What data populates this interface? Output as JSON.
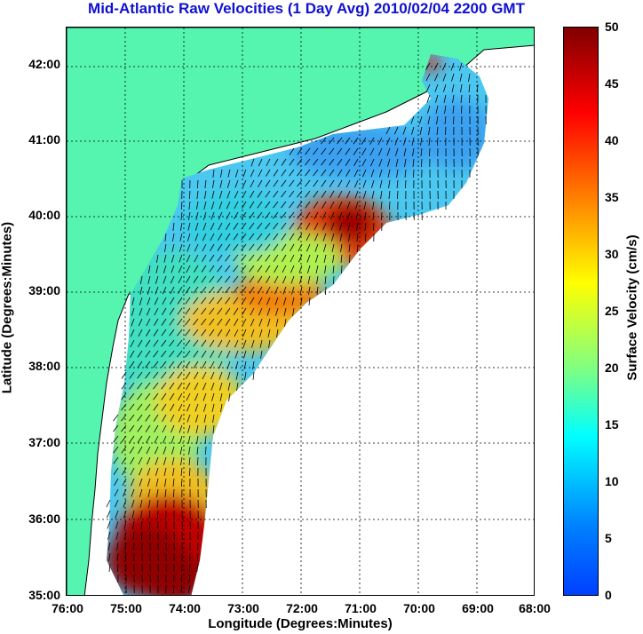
{
  "title": "Mid-Atlantic Raw Velocities (1 Day Avg) 2010/02/04 2200 GMT",
  "map": {
    "xlabel": "Longitude (Degrees:Minutes)",
    "ylabel": "Latitude (Degrees:Minutes)",
    "x_ticks": [
      "76:00",
      "75:00",
      "74:00",
      "73:00",
      "72:00",
      "71:00",
      "70:00",
      "69:00",
      "68:00"
    ],
    "y_ticks": [
      "42:00",
      "41:00",
      "40:00",
      "39:00",
      "38:00",
      "37:00",
      "36:00",
      "35:00"
    ],
    "lon_range": [
      -76,
      -68
    ],
    "lat_range": [
      35,
      42.5
    ],
    "land_color": "#55f5b0",
    "grid": "dotted"
  },
  "colorbar": {
    "label": "Surface Velocity (cm/s)",
    "ticks": [
      "50",
      "45",
      "40",
      "35",
      "30",
      "25",
      "20",
      "15",
      "10",
      "5",
      "0"
    ],
    "range": [
      0,
      50
    ],
    "colormap": "jet"
  }
}
